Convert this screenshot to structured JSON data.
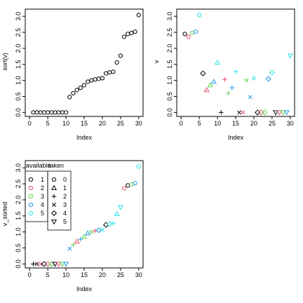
{
  "chart_data": [
    {
      "type": "scatter",
      "xlabel": "Index",
      "ylabel": "sort(v)",
      "xlim": [
        0,
        30
      ],
      "ylim": [
        0,
        3.1
      ],
      "x_ticks": [
        0,
        5,
        10,
        15,
        20,
        25,
        30
      ],
      "y_ticks": [
        "0.0",
        "0.5",
        "1.0",
        "1.5",
        "2.0",
        "2.5",
        "3.0"
      ],
      "marker": "circle",
      "color": "#000000",
      "x": [
        1,
        2,
        3,
        4,
        5,
        6,
        7,
        8,
        9,
        10,
        11,
        12,
        13,
        14,
        15,
        16,
        17,
        18,
        19,
        20,
        21,
        22,
        23,
        24,
        25,
        26,
        27,
        28,
        29,
        30
      ],
      "y": [
        0,
        0,
        0,
        0,
        0,
        0,
        0,
        0,
        0,
        0,
        0.48,
        0.6,
        0.7,
        0.77,
        0.85,
        0.96,
        1.0,
        1.03,
        1.05,
        1.07,
        1.22,
        1.25,
        1.27,
        1.56,
        1.77,
        2.36,
        2.45,
        2.48,
        2.52,
        3.04
      ]
    },
    {
      "type": "scatter",
      "xlabel": "Index",
      "ylabel": "v",
      "xlim": [
        0,
        30
      ],
      "ylim": [
        0,
        3.1
      ],
      "x_ticks": [
        0,
        5,
        10,
        15,
        20,
        25,
        30
      ],
      "y_ticks": [
        "0.0",
        "0.5",
        "1.0",
        "1.5",
        "2.0",
        "2.5",
        "3.0"
      ],
      "points": [
        {
          "x": 1,
          "y": 2.45,
          "available": 1,
          "taken": 0
        },
        {
          "x": 2,
          "y": 2.36,
          "available": 2,
          "taken": 0
        },
        {
          "x": 3,
          "y": 2.48,
          "available": 3,
          "taken": 0
        },
        {
          "x": 4,
          "y": 2.52,
          "available": 4,
          "taken": 0
        },
        {
          "x": 5,
          "y": 3.04,
          "available": 5,
          "taken": 0
        },
        {
          "x": 6,
          "y": 1.22,
          "available": 1,
          "taken": 4
        },
        {
          "x": 7,
          "y": 0.7,
          "available": 2,
          "taken": 1
        },
        {
          "x": 8,
          "y": 0.85,
          "available": 3,
          "taken": 1
        },
        {
          "x": 9,
          "y": 0.96,
          "available": 4,
          "taken": 1
        },
        {
          "x": 10,
          "y": 1.56,
          "available": 5,
          "taken": 1
        },
        {
          "x": 11,
          "y": 0,
          "available": 1,
          "taken": 2
        },
        {
          "x": 12,
          "y": 1.03,
          "available": 2,
          "taken": 2
        },
        {
          "x": 13,
          "y": 0.6,
          "available": 3,
          "taken": 2
        },
        {
          "x": 14,
          "y": 0.77,
          "available": 4,
          "taken": 2
        },
        {
          "x": 15,
          "y": 1.27,
          "available": 5,
          "taken": 2
        },
        {
          "x": 16,
          "y": 0,
          "available": 1,
          "taken": 3
        },
        {
          "x": 17,
          "y": 0,
          "available": 2,
          "taken": 3
        },
        {
          "x": 18,
          "y": 1.0,
          "available": 3,
          "taken": 3
        },
        {
          "x": 19,
          "y": 0.48,
          "available": 4,
          "taken": 3
        },
        {
          "x": 20,
          "y": 1.07,
          "available": 5,
          "taken": 3
        },
        {
          "x": 21,
          "y": 0,
          "available": 1,
          "taken": 4
        },
        {
          "x": 22,
          "y": 0,
          "available": 2,
          "taken": 4
        },
        {
          "x": 23,
          "y": 0,
          "available": 3,
          "taken": 4
        },
        {
          "x": 24,
          "y": 1.05,
          "available": 4,
          "taken": 4
        },
        {
          "x": 25,
          "y": 1.25,
          "available": 5,
          "taken": 4
        },
        {
          "x": 26,
          "y": 0,
          "available": 1,
          "taken": 5
        },
        {
          "x": 27,
          "y": 0,
          "available": 2,
          "taken": 5
        },
        {
          "x": 28,
          "y": 0,
          "available": 3,
          "taken": 5
        },
        {
          "x": 29,
          "y": 0,
          "available": 4,
          "taken": 5
        },
        {
          "x": 30,
          "y": 1.77,
          "available": 5,
          "taken": 5
        }
      ]
    },
    {
      "type": "scatter",
      "xlabel": "Index",
      "ylabel": "v_sorted",
      "xlim": [
        0,
        30
      ],
      "ylim": [
        0,
        3.1
      ],
      "x_ticks": [
        0,
        5,
        10,
        15,
        20,
        25,
        30
      ],
      "y_ticks": [
        "0.0",
        "0.5",
        "1.0",
        "1.5",
        "2.0",
        "2.5",
        "3.0"
      ],
      "points": [
        {
          "x": 1,
          "y": 0,
          "available": 1,
          "taken": 2
        },
        {
          "x": 2,
          "y": 0,
          "available": 1,
          "taken": 3
        },
        {
          "x": 3,
          "y": 0,
          "available": 2,
          "taken": 3
        },
        {
          "x": 4,
          "y": 0,
          "available": 1,
          "taken": 4
        },
        {
          "x": 5,
          "y": 0,
          "available": 2,
          "taken": 4
        },
        {
          "x": 6,
          "y": 0,
          "available": 3,
          "taken": 4
        },
        {
          "x": 7,
          "y": 0,
          "available": 1,
          "taken": 5
        },
        {
          "x": 8,
          "y": 0,
          "available": 2,
          "taken": 5
        },
        {
          "x": 9,
          "y": 0,
          "available": 3,
          "taken": 5
        },
        {
          "x": 10,
          "y": 0,
          "available": 4,
          "taken": 5
        },
        {
          "x": 11,
          "y": 0.48,
          "available": 4,
          "taken": 3
        },
        {
          "x": 12,
          "y": 0.6,
          "available": 3,
          "taken": 2
        },
        {
          "x": 13,
          "y": 0.7,
          "available": 2,
          "taken": 1
        },
        {
          "x": 14,
          "y": 0.77,
          "available": 4,
          "taken": 2
        },
        {
          "x": 15,
          "y": 0.85,
          "available": 3,
          "taken": 1
        },
        {
          "x": 16,
          "y": 0.96,
          "available": 4,
          "taken": 1
        },
        {
          "x": 17,
          "y": 1.0,
          "available": 3,
          "taken": 3
        },
        {
          "x": 18,
          "y": 1.03,
          "available": 2,
          "taken": 2
        },
        {
          "x": 19,
          "y": 1.05,
          "available": 4,
          "taken": 4
        },
        {
          "x": 20,
          "y": 1.07,
          "available": 5,
          "taken": 3
        },
        {
          "x": 21,
          "y": 1.22,
          "available": 1,
          "taken": 4
        },
        {
          "x": 22,
          "y": 1.25,
          "available": 5,
          "taken": 4
        },
        {
          "x": 23,
          "y": 1.27,
          "available": 5,
          "taken": 2
        },
        {
          "x": 24,
          "y": 1.56,
          "available": 5,
          "taken": 1
        },
        {
          "x": 25,
          "y": 1.77,
          "available": 5,
          "taken": 5
        },
        {
          "x": 26,
          "y": 2.36,
          "available": 2,
          "taken": 0
        },
        {
          "x": 27,
          "y": 2.45,
          "available": 1,
          "taken": 0
        },
        {
          "x": 28,
          "y": 2.48,
          "available": 3,
          "taken": 0
        },
        {
          "x": 29,
          "y": 2.52,
          "available": 4,
          "taken": 0
        },
        {
          "x": 30,
          "y": 3.04,
          "available": 5,
          "taken": 0
        }
      ],
      "legend": {
        "placement": "top-left",
        "available_title": "available",
        "taken_title": "taken",
        "available": [
          {
            "label": "1",
            "color": "#000000"
          },
          {
            "label": "2",
            "color": "#DF536B"
          },
          {
            "label": "3",
            "color": "#61D04F"
          },
          {
            "label": "4",
            "color": "#2297E6"
          },
          {
            "label": "5",
            "color": "#28E2E5"
          }
        ],
        "taken": [
          {
            "label": "0",
            "marker": "circle"
          },
          {
            "label": "1",
            "marker": "triangle"
          },
          {
            "label": "2",
            "marker": "plus"
          },
          {
            "label": "3",
            "marker": "cross"
          },
          {
            "label": "4",
            "marker": "diamond"
          },
          {
            "label": "5",
            "marker": "triangle-down"
          }
        ]
      }
    }
  ],
  "palette": {
    "1": "#000000",
    "2": "#DF536B",
    "3": "#61D04F",
    "4": "#2297E6",
    "5": "#28E2E5"
  },
  "markers": {
    "0": "circle",
    "1": "triangle",
    "2": "plus",
    "3": "cross",
    "4": "diamond",
    "5": "triangle-down"
  }
}
